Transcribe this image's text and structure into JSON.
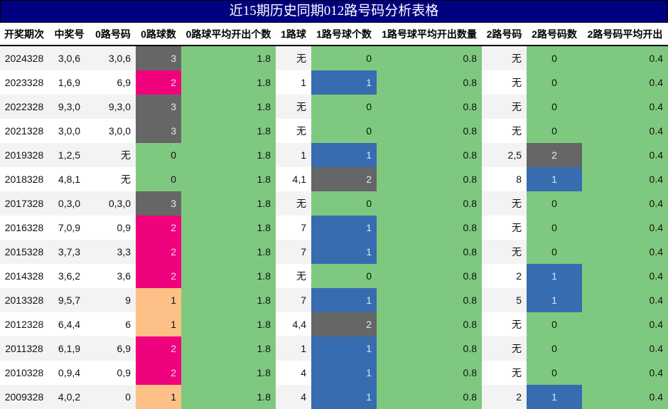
{
  "title": "近15期历史同期012路号码分析表格",
  "colors": {
    "title_bg": "#000080",
    "green": "#7ec97f",
    "gray": "#666666",
    "pink": "#f0027f",
    "peach": "#fdc086",
    "blue": "#386cb0"
  },
  "headers": [
    "开奖期次",
    "中奖号",
    "0路号码",
    "0路球数",
    "0路球平均开出个数",
    "1路球",
    "1路号球个数",
    "1路号球平均开出数量",
    "2路号码",
    "2路号码数",
    "2路号码平均开出"
  ],
  "rows": [
    {
      "period": "2024328",
      "number": "3,0,6",
      "r0": "3,0,6",
      "r0_count": "3",
      "r0_avg": "1.8",
      "r1": "无",
      "r1_count": "0",
      "r1_avg": "0.8",
      "r2": "无",
      "r2_count": "0",
      "r2_avg": "0.4"
    },
    {
      "period": "2023328",
      "number": "1,6,9",
      "r0": "6,9",
      "r0_count": "2",
      "r0_avg": "1.8",
      "r1": "1",
      "r1_count": "1",
      "r1_avg": "0.8",
      "r2": "无",
      "r2_count": "0",
      "r2_avg": "0.4"
    },
    {
      "period": "2022328",
      "number": "9,3,0",
      "r0": "9,3,0",
      "r0_count": "3",
      "r0_avg": "1.8",
      "r1": "无",
      "r1_count": "0",
      "r1_avg": "0.8",
      "r2": "无",
      "r2_count": "0",
      "r2_avg": "0.4"
    },
    {
      "period": "2021328",
      "number": "3,0,0",
      "r0": "3,0,0",
      "r0_count": "3",
      "r0_avg": "1.8",
      "r1": "无",
      "r1_count": "0",
      "r1_avg": "0.8",
      "r2": "无",
      "r2_count": "0",
      "r2_avg": "0.4"
    },
    {
      "period": "2019328",
      "number": "1,2,5",
      "r0": "无",
      "r0_count": "0",
      "r0_avg": "1.8",
      "r1": "1",
      "r1_count": "1",
      "r1_avg": "0.8",
      "r2": "2,5",
      "r2_count": "2",
      "r2_avg": "0.4"
    },
    {
      "period": "2018328",
      "number": "4,8,1",
      "r0": "无",
      "r0_count": "0",
      "r0_avg": "1.8",
      "r1": "4,1",
      "r1_count": "2",
      "r1_avg": "0.8",
      "r2": "8",
      "r2_count": "1",
      "r2_avg": "0.4"
    },
    {
      "period": "2017328",
      "number": "0,3,0",
      "r0": "0,3,0",
      "r0_count": "3",
      "r0_avg": "1.8",
      "r1": "无",
      "r1_count": "0",
      "r1_avg": "0.8",
      "r2": "无",
      "r2_count": "0",
      "r2_avg": "0.4"
    },
    {
      "period": "2016328",
      "number": "7,0,9",
      "r0": "0,9",
      "r0_count": "2",
      "r0_avg": "1.8",
      "r1": "7",
      "r1_count": "1",
      "r1_avg": "0.8",
      "r2": "无",
      "r2_count": "0",
      "r2_avg": "0.4"
    },
    {
      "period": "2015328",
      "number": "3,7,3",
      "r0": "3,3",
      "r0_count": "2",
      "r0_avg": "1.8",
      "r1": "7",
      "r1_count": "1",
      "r1_avg": "0.8",
      "r2": "无",
      "r2_count": "0",
      "r2_avg": "0.4"
    },
    {
      "period": "2014328",
      "number": "3,6,2",
      "r0": "3,6",
      "r0_count": "2",
      "r0_avg": "1.8",
      "r1": "无",
      "r1_count": "0",
      "r1_avg": "0.8",
      "r2": "2",
      "r2_count": "1",
      "r2_avg": "0.4"
    },
    {
      "period": "2013328",
      "number": "9,5,7",
      "r0": "9",
      "r0_count": "1",
      "r0_avg": "1.8",
      "r1": "7",
      "r1_count": "1",
      "r1_avg": "0.8",
      "r2": "5",
      "r2_count": "1",
      "r2_avg": "0.4"
    },
    {
      "period": "2012328",
      "number": "6,4,4",
      "r0": "6",
      "r0_count": "1",
      "r0_avg": "1.8",
      "r1": "4,4",
      "r1_count": "2",
      "r1_avg": "0.8",
      "r2": "无",
      "r2_count": "0",
      "r2_avg": "0.4"
    },
    {
      "period": "2011328",
      "number": "6,1,9",
      "r0": "6,9",
      "r0_count": "2",
      "r0_avg": "1.8",
      "r1": "1",
      "r1_count": "1",
      "r1_avg": "0.8",
      "r2": "无",
      "r2_count": "0",
      "r2_avg": "0.4"
    },
    {
      "period": "2010328",
      "number": "0,9,4",
      "r0": "0,9",
      "r0_count": "2",
      "r0_avg": "1.8",
      "r1": "4",
      "r1_count": "1",
      "r1_avg": "0.8",
      "r2": "无",
      "r2_count": "0",
      "r2_avg": "0.4"
    },
    {
      "period": "2009328",
      "number": "4,0,2",
      "r0": "0",
      "r0_count": "1",
      "r0_avg": "1.8",
      "r1": "4",
      "r1_count": "1",
      "r1_avg": "0.8",
      "r2": "2",
      "r2_count": "1",
      "r2_avg": "0.4"
    }
  ]
}
